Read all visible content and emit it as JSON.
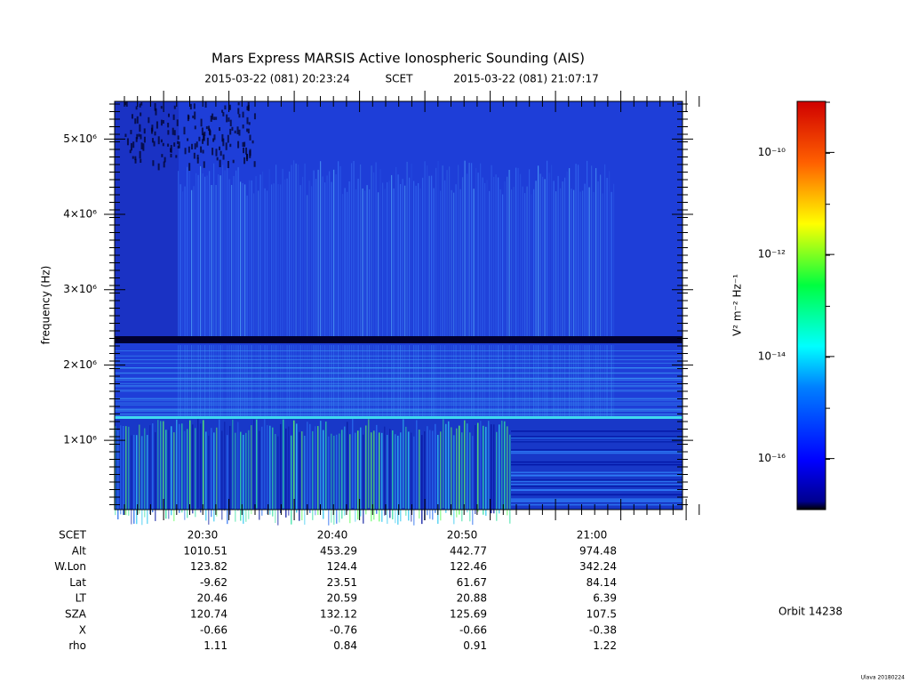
{
  "chart_data": {
    "type": "spectrogram",
    "title": "Mars Express MARSIS Active Ionospheric Sounding (AIS)",
    "subtitle": [
      "2015-03-22 (081) 20:23:24",
      "SCET",
      "2015-03-22 (081) 21:07:17"
    ],
    "ylabel": "frequency (Hz)",
    "ylim": [
      80000,
      5500000
    ],
    "yticks": [
      {
        "value": 1000000,
        "label": "1×10⁶"
      },
      {
        "value": 2000000,
        "label": "2×10⁶"
      },
      {
        "value": 3000000,
        "label": "3×10⁶"
      },
      {
        "value": 4000000,
        "label": "4×10⁶"
      },
      {
        "value": 5000000,
        "label": "5×10⁶"
      }
    ],
    "colorbar": {
      "label": "V² m⁻² Hz⁻¹",
      "log": true,
      "clim": [
        1e-17,
        1e-09
      ],
      "ticks": [
        {
          "value": 1e-10,
          "label": "10⁻¹⁰"
        },
        {
          "value": 1e-12,
          "label": "10⁻¹²"
        },
        {
          "value": 1e-14,
          "label": "10⁻¹⁴"
        },
        {
          "value": 1e-16,
          "label": "10⁻¹⁶"
        }
      ]
    }
  },
  "ephemeris": {
    "rows": [
      {
        "label": "SCET",
        "values": [
          "20:30",
          "20:40",
          "20:50",
          "21:00"
        ]
      },
      {
        "label": "Alt",
        "values": [
          1010.51,
          453.29,
          442.77,
          974.48
        ]
      },
      {
        "label": "W.Lon",
        "values": [
          123.82,
          124.4,
          122.46,
          342.24
        ]
      },
      {
        "label": "Lat",
        "values": [
          -9.62,
          23.51,
          61.67,
          84.14
        ]
      },
      {
        "label": "LT",
        "values": [
          20.46,
          20.59,
          20.88,
          6.39
        ]
      },
      {
        "label": "SZA",
        "values": [
          120.74,
          132.12,
          125.69,
          107.5
        ]
      },
      {
        "label": "X",
        "values": [
          -0.66,
          -0.76,
          -0.66,
          -0.38
        ]
      },
      {
        "label": "rho",
        "values": [
          1.11,
          0.84,
          0.91,
          1.22
        ]
      }
    ]
  },
  "orbit": "Orbit 14238",
  "footer": "Ulava 20180224"
}
